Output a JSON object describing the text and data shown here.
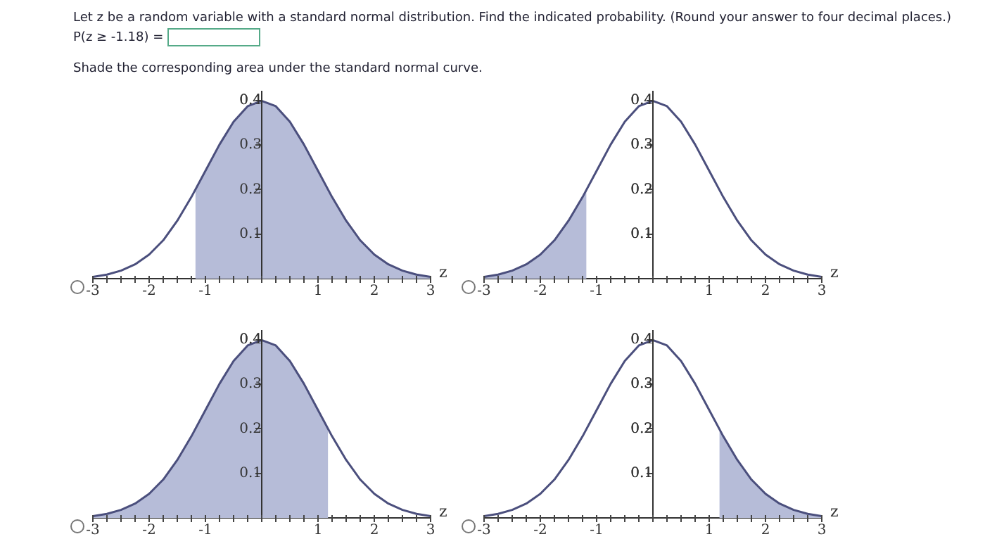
{
  "chart_data": [
    {
      "type": "line",
      "title": "Let z be a random variable with a standard normal distribution. Find the indicated probability. (Round your answer to four decimal places.)",
      "annotations": [
        "P(z ≥ -1.18) =",
        "Shade the corresponding area under the standard normal curve."
      ],
      "xlabel": "z",
      "xlim": [
        -3,
        3
      ],
      "ylim": [
        0,
        0.42
      ],
      "xticks": [
        -3,
        {
          "value": -2.75,
          "label": null
        },
        {
          "value": -2.5,
          "label": null
        },
        {
          "value": -2.25,
          "label": null
        },
        -2,
        {
          "value": -1.75,
          "label": null
        },
        {
          "value": -1.5,
          "label": null
        },
        {
          "value": -1.25,
          "label": null
        },
        -1,
        {
          "value": -0.75,
          "label": null
        },
        {
          "value": -0.5,
          "label": null
        },
        {
          "value": -0.25,
          "label": null
        },
        {
          "value": 0,
          "label": null
        },
        {
          "value": 0.25,
          "label": null
        },
        {
          "value": 0.5,
          "label": null
        },
        {
          "value": 0.75,
          "label": null
        },
        1,
        {
          "value": 1.25,
          "label": null
        },
        {
          "value": 1.5,
          "label": null
        },
        {
          "value": 1.75,
          "label": null
        },
        2,
        {
          "value": 2.25,
          "label": null
        },
        {
          "value": 2.5,
          "label": null
        },
        {
          "value": 2.75,
          "label": null
        },
        3
      ],
      "yticks": [
        0.1,
        0.2,
        0.3,
        0.4
      ],
      "grid": false,
      "legend": false,
      "marker": "none",
      "series": [
        {
          "type": "line",
          "color": "#4b4f7d",
          "x": [
            -3,
            -2.75,
            -2.5,
            -2.25,
            -2,
            -1.75,
            -1.5,
            -1.25,
            -1,
            -0.75,
            -0.5,
            -0.25,
            0,
            0.25,
            0.5,
            0.75,
            1,
            1.25,
            1.5,
            1.75,
            2,
            2.25,
            2.5,
            2.75,
            3
          ],
          "values": [
            0.004,
            0.009,
            0.018,
            0.032,
            0.054,
            0.086,
            0.13,
            0.183,
            0.242,
            0.301,
            0.352,
            0.387,
            0.399,
            0.387,
            0.352,
            0.301,
            0.242,
            0.183,
            0.13,
            0.086,
            0.054,
            0.032,
            0.018,
            0.009,
            0.004
          ]
        },
        {
          "type": "area",
          "color": "#b6bcd8",
          "x": [
            -1.18,
            -1,
            -0.75,
            -0.5,
            -0.25,
            0,
            0.25,
            0.5,
            0.75,
            1,
            1.25,
            1.5,
            1.75,
            2,
            2.25,
            2.5,
            2.75,
            3
          ],
          "values": [
            0.199,
            0.242,
            0.301,
            0.352,
            0.387,
            0.399,
            0.387,
            0.352,
            0.301,
            0.242,
            0.183,
            0.13,
            0.086,
            0.054,
            0.032,
            0.018,
            0.009,
            0.004
          ]
        }
      ]
    },
    {
      "type": "line",
      "xlabel": "z",
      "xlim": [
        -3,
        3
      ],
      "ylim": [
        0,
        0.42
      ],
      "xticks": [
        -3,
        {
          "value": -2.75,
          "label": null
        },
        {
          "value": -2.5,
          "label": null
        },
        {
          "value": -2.25,
          "label": null
        },
        -2,
        {
          "value": -1.75,
          "label": null
        },
        {
          "value": -1.5,
          "label": null
        },
        {
          "value": -1.25,
          "label": null
        },
        -1,
        {
          "value": -0.75,
          "label": null
        },
        {
          "value": -0.5,
          "label": null
        },
        {
          "value": -0.25,
          "label": null
        },
        {
          "value": 0,
          "label": null
        },
        {
          "value": 0.25,
          "label": null
        },
        {
          "value": 0.5,
          "label": null
        },
        {
          "value": 0.75,
          "label": null
        },
        1,
        {
          "value": 1.25,
          "label": null
        },
        {
          "value": 1.5,
          "label": null
        },
        {
          "value": 1.75,
          "label": null
        },
        2,
        {
          "value": 2.25,
          "label": null
        },
        {
          "value": 2.5,
          "label": null
        },
        {
          "value": 2.75,
          "label": null
        },
        3
      ],
      "yticks": [
        0.1,
        0.2,
        0.3,
        0.4
      ],
      "grid": false,
      "legend": false,
      "marker": "none",
      "series": [
        {
          "type": "line",
          "color": "#4b4f7d",
          "x": [
            -3,
            -2.75,
            -2.5,
            -2.25,
            -2,
            -1.75,
            -1.5,
            -1.25,
            -1,
            -0.75,
            -0.5,
            -0.25,
            0,
            0.25,
            0.5,
            0.75,
            1,
            1.25,
            1.5,
            1.75,
            2,
            2.25,
            2.5,
            2.75,
            3
          ],
          "values": [
            0.004,
            0.009,
            0.018,
            0.032,
            0.054,
            0.086,
            0.13,
            0.183,
            0.242,
            0.301,
            0.352,
            0.387,
            0.399,
            0.387,
            0.352,
            0.301,
            0.242,
            0.183,
            0.13,
            0.086,
            0.054,
            0.032,
            0.018,
            0.009,
            0.004
          ]
        },
        {
          "type": "area",
          "color": "#b6bcd8",
          "x": [
            -3,
            -2.75,
            -2.5,
            -2.25,
            -2,
            -1.75,
            -1.5,
            -1.25,
            -1.18
          ],
          "values": [
            0.004,
            0.009,
            0.018,
            0.032,
            0.054,
            0.086,
            0.13,
            0.183,
            0.199
          ]
        }
      ]
    },
    {
      "type": "line",
      "xlabel": "z",
      "xlim": [
        -3,
        3
      ],
      "ylim": [
        0,
        0.42
      ],
      "xticks": [
        -3,
        {
          "value": -2.75,
          "label": null
        },
        {
          "value": -2.5,
          "label": null
        },
        {
          "value": -2.25,
          "label": null
        },
        -2,
        {
          "value": -1.75,
          "label": null
        },
        {
          "value": -1.5,
          "label": null
        },
        {
          "value": -1.25,
          "label": null
        },
        -1,
        {
          "value": -0.75,
          "label": null
        },
        {
          "value": -0.5,
          "label": null
        },
        {
          "value": -0.25,
          "label": null
        },
        {
          "value": 0,
          "label": null
        },
        {
          "value": 0.25,
          "label": null
        },
        {
          "value": 0.5,
          "label": null
        },
        {
          "value": 0.75,
          "label": null
        },
        1,
        {
          "value": 1.25,
          "label": null
        },
        {
          "value": 1.5,
          "label": null
        },
        {
          "value": 1.75,
          "label": null
        },
        2,
        {
          "value": 2.25,
          "label": null
        },
        {
          "value": 2.5,
          "label": null
        },
        {
          "value": 2.75,
          "label": null
        },
        3
      ],
      "yticks": [
        0.1,
        0.2,
        0.3,
        0.4
      ],
      "grid": false,
      "legend": false,
      "marker": "none",
      "series": [
        {
          "type": "line",
          "color": "#4b4f7d",
          "x": [
            -3,
            -2.75,
            -2.5,
            -2.25,
            -2,
            -1.75,
            -1.5,
            -1.25,
            -1,
            -0.75,
            -0.5,
            -0.25,
            0,
            0.25,
            0.5,
            0.75,
            1,
            1.25,
            1.5,
            1.75,
            2,
            2.25,
            2.5,
            2.75,
            3
          ],
          "values": [
            0.004,
            0.009,
            0.018,
            0.032,
            0.054,
            0.086,
            0.13,
            0.183,
            0.242,
            0.301,
            0.352,
            0.387,
            0.399,
            0.387,
            0.352,
            0.301,
            0.242,
            0.183,
            0.13,
            0.086,
            0.054,
            0.032,
            0.018,
            0.009,
            0.004
          ]
        },
        {
          "type": "area",
          "color": "#b6bcd8",
          "x": [
            -3,
            -2.75,
            -2.5,
            -2.25,
            -2,
            -1.75,
            -1.5,
            -1.25,
            -1,
            -0.75,
            -0.5,
            -0.25,
            0,
            0.25,
            0.5,
            0.75,
            1,
            1.18
          ],
          "values": [
            0.004,
            0.009,
            0.018,
            0.032,
            0.054,
            0.086,
            0.13,
            0.183,
            0.242,
            0.301,
            0.352,
            0.387,
            0.399,
            0.387,
            0.352,
            0.301,
            0.242,
            0.199
          ]
        }
      ]
    },
    {
      "type": "line",
      "xlabel": "z",
      "xlim": [
        -3,
        3
      ],
      "ylim": [
        0,
        0.42
      ],
      "xticks": [
        -3,
        {
          "value": -2.75,
          "label": null
        },
        {
          "value": -2.5,
          "label": null
        },
        {
          "value": -2.25,
          "label": null
        },
        -2,
        {
          "value": -1.75,
          "label": null
        },
        {
          "value": -1.5,
          "label": null
        },
        {
          "value": -1.25,
          "label": null
        },
        -1,
        {
          "value": -0.75,
          "label": null
        },
        {
          "value": -0.5,
          "label": null
        },
        {
          "value": -0.25,
          "label": null
        },
        {
          "value": 0,
          "label": null
        },
        {
          "value": 0.25,
          "label": null
        },
        {
          "value": 0.5,
          "label": null
        },
        {
          "value": 0.75,
          "label": null
        },
        1,
        {
          "value": 1.25,
          "label": null
        },
        {
          "value": 1.5,
          "label": null
        },
        {
          "value": 1.75,
          "label": null
        },
        2,
        {
          "value": 2.25,
          "label": null
        },
        {
          "value": 2.5,
          "label": null
        },
        {
          "value": 2.75,
          "label": null
        },
        3
      ],
      "yticks": [
        0.1,
        0.2,
        0.3,
        0.4
      ],
      "grid": false,
      "legend": false,
      "marker": "none",
      "series": [
        {
          "type": "line",
          "color": "#4b4f7d",
          "x": [
            -3,
            -2.75,
            -2.5,
            -2.25,
            -2,
            -1.75,
            -1.5,
            -1.25,
            -1,
            -0.75,
            -0.5,
            -0.25,
            0,
            0.25,
            0.5,
            0.75,
            1,
            1.25,
            1.5,
            1.75,
            2,
            2.25,
            2.5,
            2.75,
            3
          ],
          "values": [
            0.004,
            0.009,
            0.018,
            0.032,
            0.054,
            0.086,
            0.13,
            0.183,
            0.242,
            0.301,
            0.352,
            0.387,
            0.399,
            0.387,
            0.352,
            0.301,
            0.242,
            0.183,
            0.13,
            0.086,
            0.054,
            0.032,
            0.018,
            0.009,
            0.004
          ]
        },
        {
          "type": "area",
          "color": "#b6bcd8",
          "x": [
            1.18,
            1.25,
            1.5,
            1.75,
            2,
            2.25,
            2.5,
            2.75,
            3
          ],
          "values": [
            0.199,
            0.183,
            0.13,
            0.086,
            0.054,
            0.032,
            0.018,
            0.009,
            0.004
          ]
        }
      ]
    }
  ]
}
